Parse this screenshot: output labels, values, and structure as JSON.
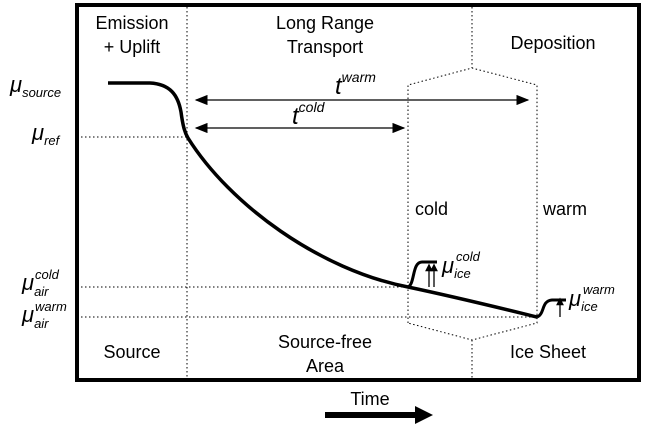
{
  "header": {
    "emission": [
      "Emission",
      "+ Uplift"
    ],
    "transport": [
      "Long Range",
      "Transport"
    ],
    "deposition": "Deposition"
  },
  "symbols": {
    "mu_source": {
      "base": "μ",
      "sub": "source"
    },
    "mu_ref": {
      "base": "μ",
      "sub": "ref"
    },
    "mu_air_cold": {
      "base": "μ",
      "sub": "air",
      "sup": "cold"
    },
    "mu_air_warm": {
      "base": "μ",
      "sub": "air",
      "sup": "warm"
    },
    "t_warm": {
      "base": "t",
      "sup": "warm"
    },
    "t_cold": {
      "base": "t",
      "sup": "cold"
    },
    "mu_ice_cold": {
      "base": "μ",
      "sub": "ice",
      "sup": "cold"
    },
    "mu_ice_warm": {
      "base": "μ",
      "sub": "ice",
      "sup": "warm"
    }
  },
  "regions": {
    "cold": "cold",
    "warm": "warm"
  },
  "footer": {
    "source": "Source",
    "source_free": [
      "Source-free",
      "Area"
    ],
    "ice_sheet": "Ice Sheet"
  },
  "axis": "Time"
}
